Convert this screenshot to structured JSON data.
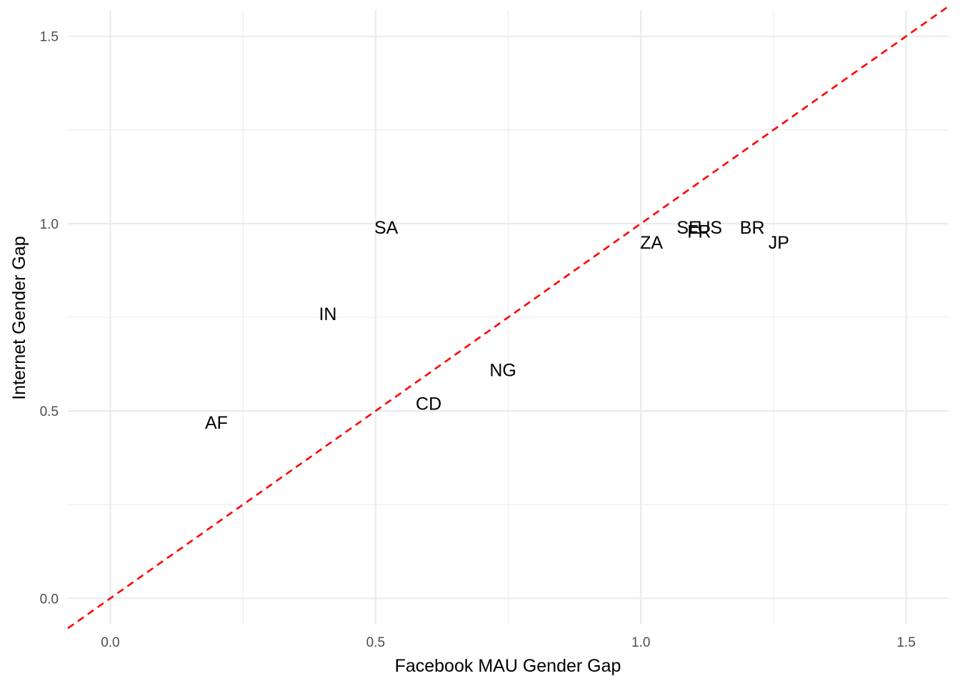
{
  "chart_data": {
    "type": "scatter",
    "title": "",
    "xlabel": "Facebook MAU Gender Gap",
    "ylabel": "Internet Gender Gap",
    "xlim": [
      -0.08,
      1.58
    ],
    "ylim": [
      -0.07,
      1.57
    ],
    "x_ticks": [
      {
        "value": 0.0,
        "label": "0.0"
      },
      {
        "value": 0.5,
        "label": "0.5"
      },
      {
        "value": 1.0,
        "label": "1.0"
      },
      {
        "value": 1.5,
        "label": "1.5"
      }
    ],
    "y_ticks": [
      {
        "value": 0.0,
        "label": "0.0"
      },
      {
        "value": 0.5,
        "label": "0.5"
      },
      {
        "value": 1.0,
        "label": "1.0"
      },
      {
        "value": 1.5,
        "label": "1.5"
      }
    ],
    "x_minor": [
      0.25,
      0.75,
      1.25
    ],
    "y_minor": [
      0.25,
      0.75,
      1.25
    ],
    "grid": true,
    "reference_line": {
      "slope": 1,
      "intercept": 0,
      "style": "dashed",
      "color": "#ff0000"
    },
    "points": [
      {
        "label": "SA",
        "x": 0.52,
        "y": 0.99
      },
      {
        "label": "IN",
        "x": 0.41,
        "y": 0.76
      },
      {
        "label": "NG",
        "x": 0.74,
        "y": 0.61
      },
      {
        "label": "CD",
        "x": 0.6,
        "y": 0.52
      },
      {
        "label": "AF",
        "x": 0.2,
        "y": 0.47
      },
      {
        "label": "ZA",
        "x": 1.02,
        "y": 0.95
      },
      {
        "label": "SE",
        "x": 1.09,
        "y": 0.99
      },
      {
        "label": "FR",
        "x": 1.11,
        "y": 0.98
      },
      {
        "label": "US",
        "x": 1.13,
        "y": 0.99
      },
      {
        "label": "BR",
        "x": 1.21,
        "y": 0.99
      },
      {
        "label": "JP",
        "x": 1.26,
        "y": 0.95
      }
    ]
  },
  "colors": {
    "reference_line": "#ff0000",
    "grid": "#ebebeb",
    "tick_text": "#4d4d4d",
    "label_text": "#000000"
  }
}
